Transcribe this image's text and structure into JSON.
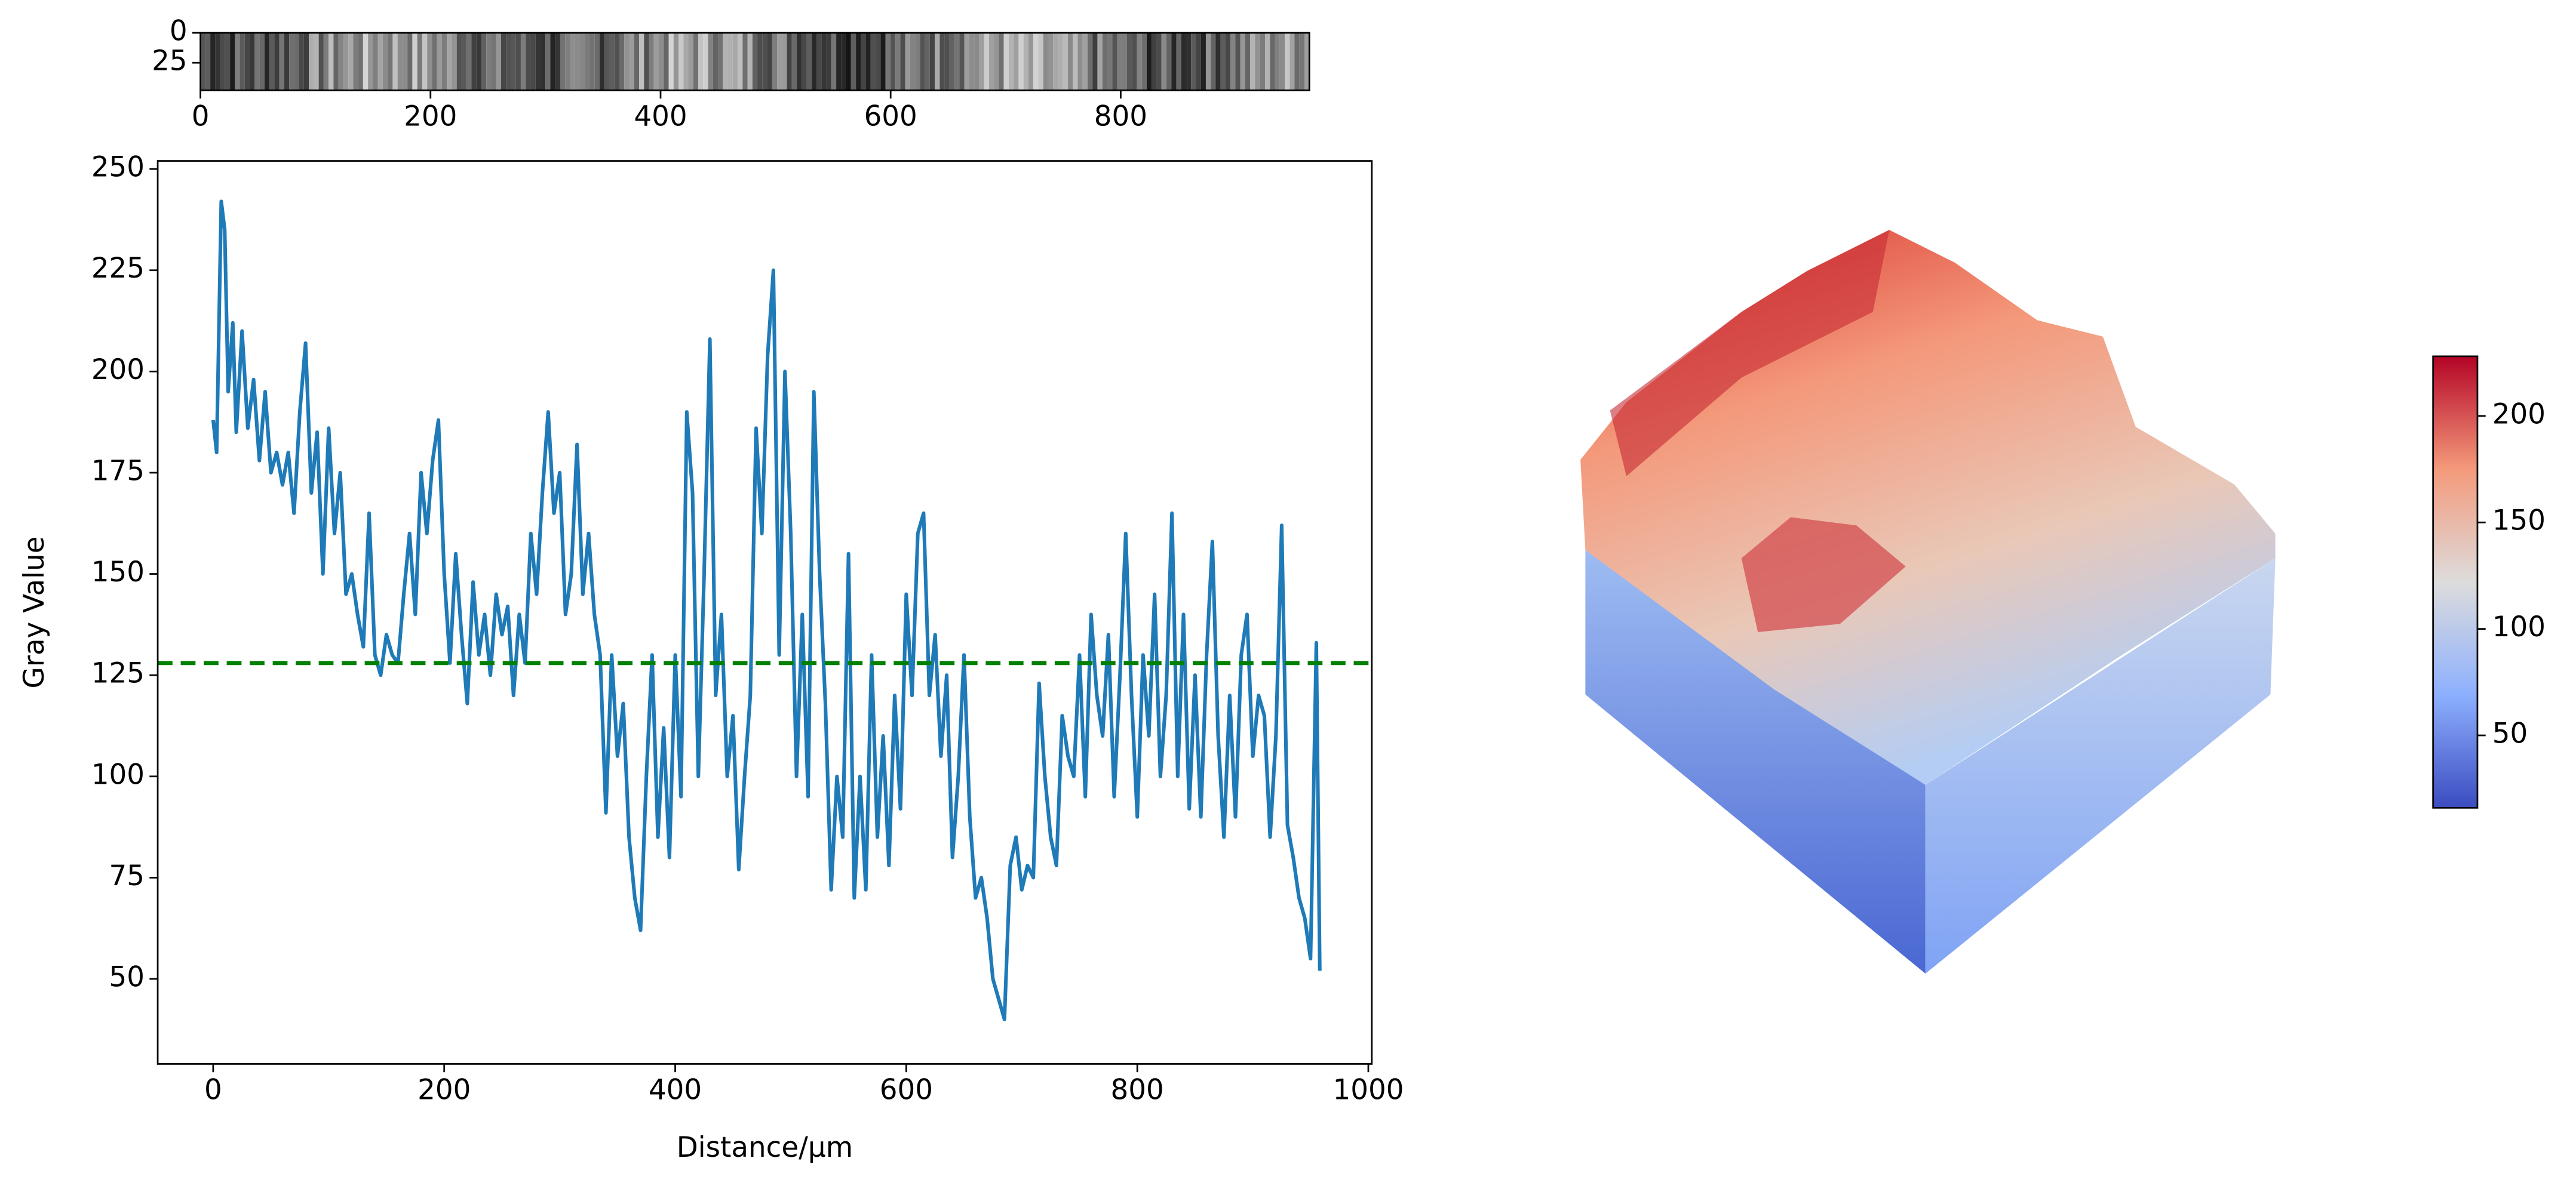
{
  "chart_data": [
    {
      "type": "image",
      "xlim": [
        0,
        964
      ],
      "xticks": [
        0,
        200,
        400,
        600,
        800
      ],
      "ylim": [
        48,
        0
      ],
      "yticks": [
        0,
        25
      ]
    },
    {
      "type": "line",
      "xlabel": "Distance/μm",
      "ylabel": "Gray Value",
      "xlim": [
        -48,
        1003
      ],
      "xticks": [
        0,
        200,
        400,
        600,
        800,
        1000
      ],
      "ylim": [
        29,
        252
      ],
      "yticks": [
        50,
        75,
        100,
        125,
        150,
        175,
        200,
        225,
        250
      ],
      "hline": 128,
      "hline_color": "#008000",
      "series": [
        {
          "color": "#1f7ab8",
          "x": [
            0,
            3,
            7,
            10,
            13,
            17,
            20,
            25,
            30,
            35,
            40,
            45,
            50,
            55,
            60,
            65,
            70,
            75,
            80,
            85,
            90,
            95,
            100,
            105,
            110,
            115,
            120,
            125,
            130,
            135,
            140,
            145,
            150,
            155,
            160,
            165,
            170,
            175,
            180,
            185,
            190,
            195,
            200,
            205,
            210,
            215,
            220,
            225,
            230,
            235,
            240,
            245,
            250,
            255,
            260,
            265,
            270,
            275,
            280,
            285,
            290,
            295,
            300,
            305,
            310,
            315,
            320,
            325,
            330,
            335,
            340,
            345,
            350,
            355,
            360,
            365,
            370,
            375,
            380,
            385,
            390,
            395,
            400,
            405,
            410,
            415,
            420,
            425,
            430,
            435,
            440,
            445,
            450,
            455,
            460,
            465,
            470,
            475,
            480,
            485,
            490,
            495,
            500,
            505,
            510,
            515,
            520,
            525,
            530,
            535,
            540,
            545,
            550,
            555,
            560,
            565,
            570,
            575,
            580,
            585,
            590,
            595,
            600,
            605,
            610,
            615,
            620,
            625,
            630,
            635,
            640,
            645,
            650,
            655,
            660,
            665,
            670,
            675,
            680,
            685,
            690,
            695,
            700,
            705,
            710,
            715,
            720,
            725,
            730,
            735,
            740,
            745,
            750,
            755,
            760,
            765,
            770,
            775,
            780,
            785,
            790,
            795,
            800,
            805,
            810,
            815,
            820,
            825,
            830,
            835,
            840,
            845,
            850,
            855,
            860,
            865,
            870,
            875,
            880,
            885,
            890,
            895,
            900,
            905,
            910,
            915,
            920,
            925,
            930,
            935,
            940,
            945,
            950,
            955,
            958
          ],
          "values": [
            188,
            180,
            242,
            235,
            195,
            212,
            185,
            210,
            186,
            198,
            178,
            195,
            175,
            180,
            172,
            180,
            165,
            190,
            207,
            170,
            185,
            150,
            186,
            160,
            175,
            145,
            150,
            140,
            132,
            165,
            130,
            125,
            135,
            130,
            128,
            145,
            160,
            140,
            175,
            160,
            178,
            188,
            150,
            128,
            155,
            135,
            118,
            148,
            130,
            140,
            125,
            145,
            135,
            142,
            120,
            140,
            128,
            160,
            145,
            170,
            190,
            165,
            175,
            140,
            150,
            182,
            145,
            160,
            140,
            130,
            91,
            130,
            105,
            118,
            85,
            70,
            62,
            100,
            130,
            85,
            112,
            80,
            130,
            95,
            190,
            170,
            100,
            150,
            208,
            120,
            140,
            100,
            115,
            77,
            100,
            120,
            186,
            160,
            204,
            225,
            130,
            200,
            160,
            100,
            140,
            95,
            195,
            150,
            118,
            72,
            100,
            85,
            155,
            70,
            100,
            72,
            130,
            85,
            110,
            78,
            120,
            92,
            145,
            120,
            160,
            165,
            120,
            135,
            105,
            125,
            80,
            100,
            130,
            90,
            70,
            75,
            65,
            50,
            45,
            40,
            78,
            85,
            72,
            78,
            75,
            123,
            100,
            85,
            78,
            115,
            105,
            100,
            130,
            95,
            140,
            120,
            110,
            135,
            95,
            125,
            160,
            120,
            90,
            130,
            110,
            145,
            100,
            120,
            165,
            100,
            140,
            92,
            125,
            90,
            130,
            158,
            110,
            85,
            120,
            90,
            130,
            140,
            105,
            120,
            115,
            85,
            110,
            162,
            88,
            80,
            70,
            65,
            55,
            133,
            52
          ]
        }
      ]
    },
    {
      "type": "surface",
      "clim": [
        16,
        228
      ],
      "cticks": [
        50,
        100,
        150,
        200
      ]
    }
  ]
}
